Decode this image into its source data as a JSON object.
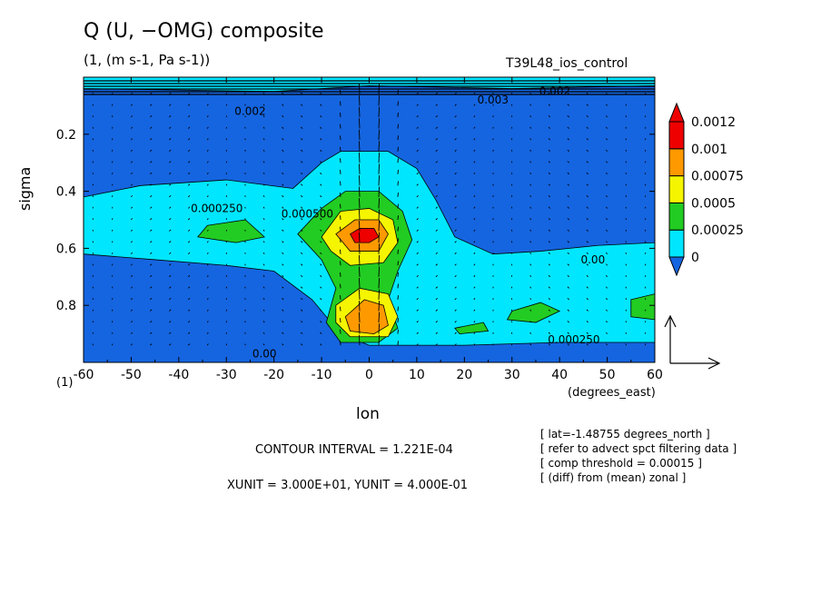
{
  "title": "Q (U, −OMG) composite",
  "subtitle": "(1, (m s-1, Pa s-1))",
  "run_name": "T39L48_ios_control",
  "notes": [
    "[ lat=-1.48755 degrees_north ]",
    "[ refer to advect spct filtering data ]",
    "[ comp threshold = 0.00015 ]",
    "[ (diff) from (mean) zonal ]"
  ],
  "contour_interval_text": "CONTOUR INTERVAL = 1.221E-04",
  "unit_vectors_text": "XUNIT = 3.000E+01, YUNIT = 4.000E-01",
  "colors": {
    "level_0": "#1565e0",
    "level_1": "#00e6ff",
    "level_2": "#22cc22",
    "level_3": "#f5f500",
    "level_4": "#ff9900",
    "level_5": "#ee0000"
  },
  "chart_data": {
    "type": "heatmap",
    "xlabel": "lon",
    "xunits": "(degrees_east)",
    "ylabel": "sigma",
    "yunits": "(1)",
    "xlim": [
      -60,
      60
    ],
    "ylim": [
      1.0,
      0.0
    ],
    "x_ticks": [
      -60,
      -50,
      -40,
      -30,
      -20,
      -10,
      0,
      10,
      20,
      30,
      40,
      50,
      60
    ],
    "x_tick_labels": [
      "-60",
      "-50",
      "-40",
      "-30",
      "-20",
      "-10",
      "0",
      "10",
      "20",
      "30",
      "40",
      "50",
      "60"
    ],
    "y_ticks": [
      0.2,
      0.4,
      0.6,
      0.8
    ],
    "y_tick_labels": [
      "0.2",
      "0.4",
      "0.6",
      "0.8"
    ],
    "colorbar": {
      "levels": [
        0,
        0.00025,
        0.0005,
        0.00075,
        0.001,
        0.0012
      ],
      "labels": [
        "0",
        "0.00025",
        "0.0005",
        "0.00075",
        "0.001",
        "0.0012"
      ]
    },
    "contour_labels": [
      {
        "text": "0.000250",
        "lon": -32,
        "sigma": 0.46
      },
      {
        "text": "0.000500",
        "lon": -13,
        "sigma": 0.48
      },
      {
        "text": "0.00",
        "lon": 47,
        "sigma": 0.64
      },
      {
        "text": "0.000250",
        "lon": 43,
        "sigma": 0.92
      },
      {
        "text": "0.00",
        "lon": -22,
        "sigma": 0.97
      },
      {
        "text": "0.002",
        "lon": -25,
        "sigma": 0.12
      },
      {
        "text": "0.003",
        "lon": 26,
        "sigma": 0.08
      },
      {
        "text": "0.002",
        "lon": 39,
        "sigma": 0.05
      }
    ],
    "features": [
      {
        "name": "primary maximum",
        "lon": -2,
        "sigma": 0.55,
        "value": 0.0012
      },
      {
        "name": "secondary maximum",
        "lon": -2,
        "sigma": 0.85,
        "value": 0.001
      },
      {
        "name": "western tongue",
        "lon": -30,
        "sigma": 0.55,
        "value": 0.0005
      },
      {
        "name": "eastern patches",
        "lon": 35,
        "sigma": 0.82,
        "value": 0.0005
      }
    ],
    "vector_field": {
      "components": [
        "U",
        "-OMG"
      ],
      "reference_arrow": "XUNIT=30, YUNIT=0.4"
    }
  }
}
